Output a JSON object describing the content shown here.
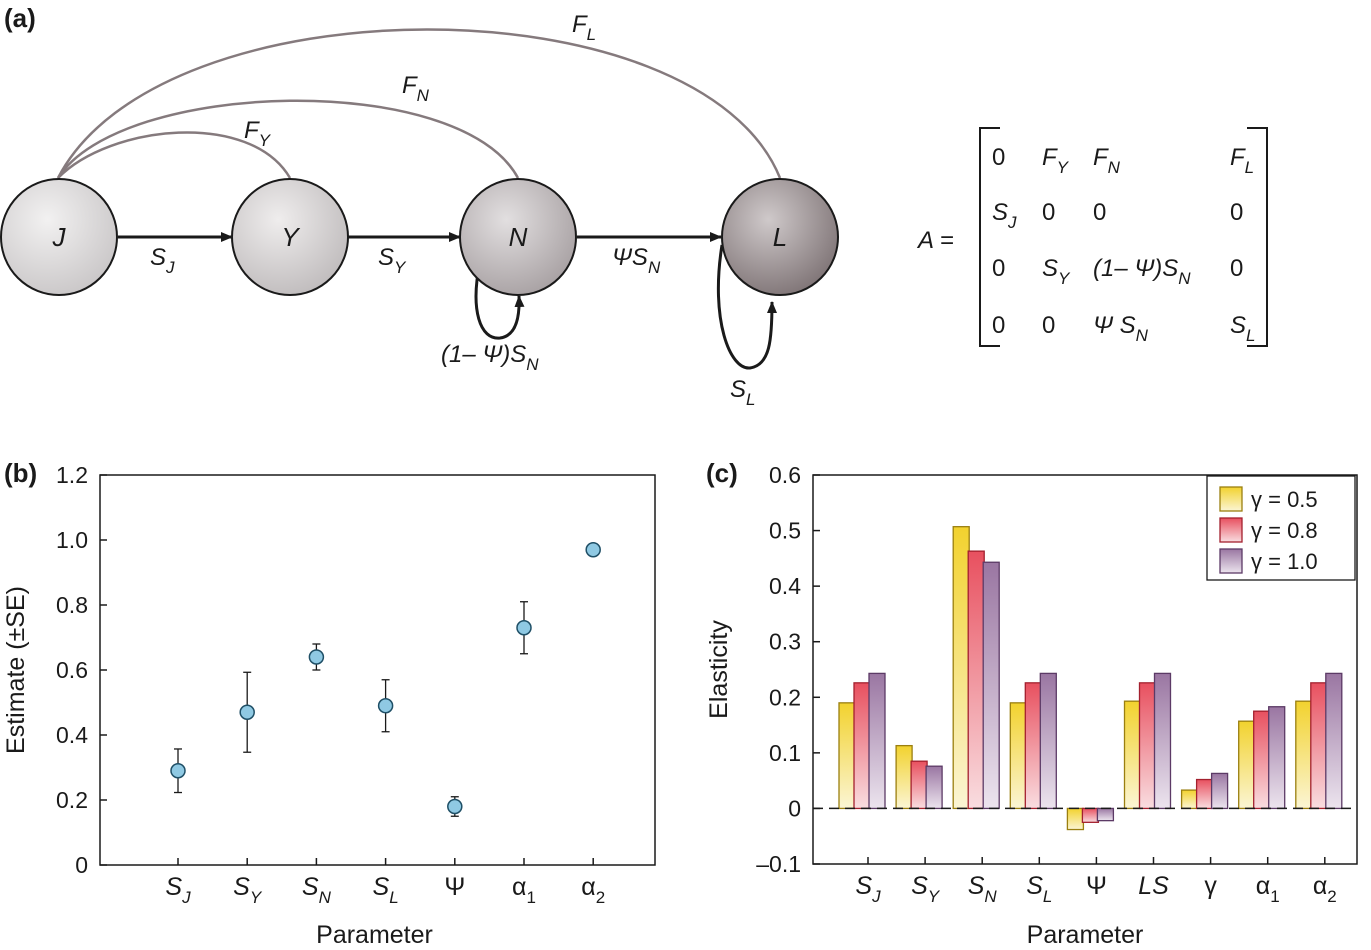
{
  "panels": {
    "a": "(a)",
    "b": "(b)",
    "c": "(c)"
  },
  "diagram": {
    "nodes": [
      {
        "id": "J",
        "label": "J"
      },
      {
        "id": "Y",
        "label": "Y"
      },
      {
        "id": "N",
        "label": "N"
      },
      {
        "id": "L",
        "label": "L"
      }
    ],
    "survival_edges": [
      {
        "from": "J",
        "to": "Y",
        "base": "S",
        "sub": "J"
      },
      {
        "from": "Y",
        "to": "N",
        "base": "S",
        "sub": "Y"
      },
      {
        "from": "N",
        "to": "L",
        "base": "ΨS",
        "sub": "N"
      }
    ],
    "self_loops": [
      {
        "node": "N",
        "base": "(1– Ψ)S",
        "sub": "N"
      },
      {
        "node": "L",
        "base": "S",
        "sub": "L"
      }
    ],
    "fecundity_edges": [
      {
        "from": "Y",
        "to": "J",
        "base": "F",
        "sub": "Y"
      },
      {
        "from": "N",
        "to": "J",
        "base": "F",
        "sub": "N"
      },
      {
        "from": "L",
        "to": "J",
        "base": "F",
        "sub": "L"
      }
    ],
    "colors": {
      "J": "#d9d7d8",
      "Y": "#cfcccd",
      "N": "#bdb8ba",
      "L": "#9a9193",
      "fecundity_edge": "#857a7d",
      "survival_edge": "#1a1a1a"
    }
  },
  "matrix": {
    "label": "A =",
    "rows": [
      [
        {
          "t": "0"
        },
        {
          "t": "F",
          "s": "Y"
        },
        {
          "t": "F",
          "s": "N"
        },
        {
          "t": "F",
          "s": "L"
        }
      ],
      [
        {
          "t": "S",
          "s": "J"
        },
        {
          "t": "0"
        },
        {
          "t": "0"
        },
        {
          "t": "0"
        }
      ],
      [
        {
          "t": "0"
        },
        {
          "t": "S",
          "s": "Y"
        },
        {
          "t": "(1– Ψ)S",
          "s": "N"
        },
        {
          "t": "0"
        }
      ],
      [
        {
          "t": "0"
        },
        {
          "t": "0"
        },
        {
          "t": "Ψ S",
          "s": "N"
        },
        {
          "t": "S",
          "s": "L"
        }
      ]
    ]
  },
  "chart_data": [
    {
      "panel": "b",
      "type": "scatter",
      "ylabel": "Estimate (±SE)",
      "xlabel": "Parameter",
      "ylim": [
        0,
        1.2
      ],
      "yticks": [
        "0",
        "0.2",
        "0.4",
        "0.6",
        "0.8",
        "1.0",
        "1.2"
      ],
      "categories": [
        {
          "base": "S",
          "sub": "J",
          "italic": true
        },
        {
          "base": "S",
          "sub": "Y",
          "italic": true
        },
        {
          "base": "S",
          "sub": "N",
          "italic": true
        },
        {
          "base": "S",
          "sub": "L",
          "italic": true
        },
        {
          "base": "Ψ",
          "sub": "",
          "italic": false
        },
        {
          "base": "α",
          "sub": "1",
          "italic": false
        },
        {
          "base": "α",
          "sub": "2",
          "italic": false
        }
      ],
      "values": [
        0.29,
        0.47,
        0.64,
        0.49,
        0.18,
        0.73,
        0.97
      ],
      "se": [
        0.067,
        0.123,
        0.04,
        0.08,
        0.03,
        0.08,
        0.015
      ],
      "marker_color": "#8fc9e3",
      "marker_edge": "#1f4f66"
    },
    {
      "panel": "c",
      "type": "bar",
      "ylabel": "Elasticity",
      "xlabel": "Parameter",
      "ylim": [
        -0.1,
        0.6
      ],
      "yticks": [
        "–0.1",
        "0",
        "0.1",
        "0.2",
        "0.3",
        "0.4",
        "0.5",
        "0.6"
      ],
      "categories": [
        {
          "base": "S",
          "sub": "J",
          "italic": true
        },
        {
          "base": "S",
          "sub": "Y",
          "italic": true
        },
        {
          "base": "S",
          "sub": "N",
          "italic": true
        },
        {
          "base": "S",
          "sub": "L",
          "italic": true
        },
        {
          "base": "Ψ",
          "sub": "",
          "italic": false
        },
        {
          "base": "LS",
          "sub": "",
          "italic": true
        },
        {
          "base": "γ",
          "sub": "",
          "italic": false
        },
        {
          "base": "α",
          "sub": "1",
          "italic": false
        },
        {
          "base": "α",
          "sub": "2",
          "italic": false
        }
      ],
      "series": [
        {
          "name": "γ = 0.5",
          "values": [
            0.19,
            0.113,
            0.507,
            0.19,
            -0.038,
            0.193,
            0.033,
            0.157,
            0.193
          ],
          "color": "#f0d43a",
          "edge": "#9a7f10"
        },
        {
          "name": "γ = 0.8",
          "values": [
            0.226,
            0.085,
            0.463,
            0.226,
            -0.025,
            0.226,
            0.052,
            0.175,
            0.226
          ],
          "color": "#ec6b78",
          "edge": "#a3202e"
        },
        {
          "name": "γ = 1.0",
          "values": [
            0.243,
            0.076,
            0.443,
            0.243,
            -0.022,
            0.243,
            0.063,
            0.183,
            0.243
          ],
          "color": "#a784ad",
          "edge": "#5c3a66"
        }
      ],
      "legend_position": "top-right",
      "zero_line": "dashed"
    }
  ]
}
